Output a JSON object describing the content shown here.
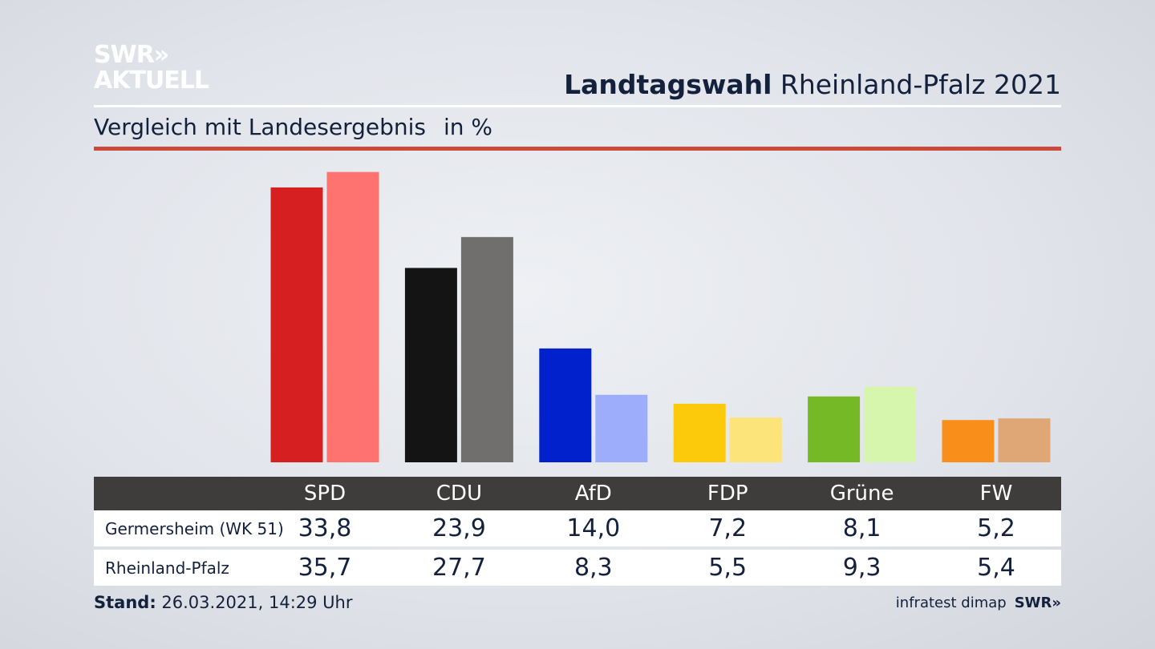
{
  "header": {
    "logo_line1": "SWR»",
    "logo_line2": "AKTUELL",
    "title_bold": "Landtagswahl",
    "title_rest": " Rheinland-Pfalz 2021",
    "subtitle": "Vergleich mit Landesergebnis",
    "unit": "in %"
  },
  "colors": {
    "Germersheim": [
      "#d61f21",
      "#141414",
      "#0021cc",
      "#fcca0b",
      "#76b927",
      "#fa8e1b"
    ],
    "Rheinland-Pfalz": [
      "#fe736f",
      "#716f6d",
      "#9eacfc",
      "#fde47a",
      "#d6f6ad",
      "#dea775"
    ],
    "accent_red": "#cc4a3b"
  },
  "chart_data": {
    "type": "bar",
    "categories": [
      "SPD",
      "CDU",
      "AfD",
      "FDP",
      "Grüne",
      "FW"
    ],
    "series": [
      {
        "name": "Germersheim (WK 51)",
        "values": [
          33.8,
          23.9,
          14.0,
          7.2,
          8.1,
          5.2
        ]
      },
      {
        "name": "Rheinland-Pfalz",
        "values": [
          35.7,
          27.7,
          8.3,
          5.5,
          9.3,
          5.4
        ]
      }
    ],
    "title": "Landtagswahl Rheinland-Pfalz 2021",
    "subtitle": "Vergleich mit Landesergebnis",
    "ylabel": "in %",
    "ylim": [
      0,
      36
    ],
    "grid": false,
    "legend": "table-below"
  },
  "table": {
    "headers": [
      "SPD",
      "CDU",
      "AfD",
      "FDP",
      "Grüne",
      "FW"
    ],
    "rows": [
      {
        "label": "Germersheim (WK 51)",
        "values": [
          "33,8",
          "23,9",
          "14,0",
          "7,2",
          "8,1",
          "5,2"
        ]
      },
      {
        "label": "Rheinland-Pfalz",
        "values": [
          "35,7",
          "27,7",
          "8,3",
          "5,5",
          "9,3",
          "5,4"
        ]
      }
    ]
  },
  "footer": {
    "stand_label": "Stand:",
    "stand_value": " 26.03.2021, 14:29 Uhr",
    "source": "infratest dimap",
    "brand": "SWR»"
  }
}
